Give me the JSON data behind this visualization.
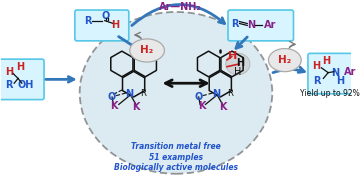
{
  "bg_color": "#ffffff",
  "ellipse_fill": "#c5dce8",
  "text_blue": "#2255cc",
  "text_red": "#cc2222",
  "text_purple": "#882288",
  "text_dark": "#111111",
  "text_blue2": "#1a5276",
  "arrow_blue": "#3377bb",
  "arrow_gray": "#888888",
  "k_color": "#882288",
  "n_color": "#2255cc",
  "o_color": "#2255cc",
  "annotation_lines": [
    "Transition metal free",
    "51 examples",
    "Biologically active molecules"
  ],
  "yield_text": "Yield up to 92%",
  "h2_fill": "#e0e0e0",
  "h2_edge": "#aaaaaa"
}
